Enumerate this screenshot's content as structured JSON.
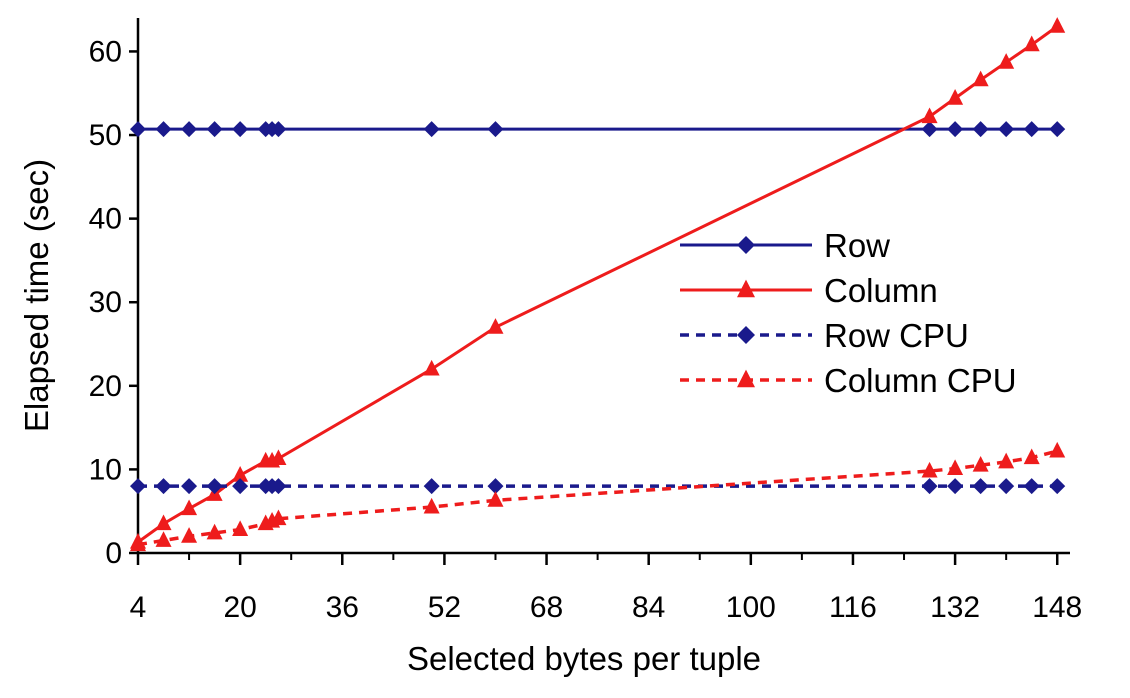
{
  "chart_data": {
    "type": "line",
    "title": "",
    "xlabel": "Selected bytes per tuple",
    "ylabel": "Elapsed time (sec)",
    "xlim": [
      4,
      150
    ],
    "ylim": [
      0,
      64
    ],
    "xticks": [
      4,
      20,
      36,
      52,
      68,
      84,
      100,
      116,
      132,
      148
    ],
    "yticks": [
      0,
      10,
      20,
      30,
      40,
      50,
      60
    ],
    "grid": false,
    "legend_position": "right-center",
    "series": [
      {
        "name": "Row",
        "color": "#1a1a8c",
        "line": "solid",
        "marker": "diamond",
        "points": [
          [
            4,
            50.7
          ],
          [
            8,
            50.7
          ],
          [
            12,
            50.7
          ],
          [
            16,
            50.7
          ],
          [
            20,
            50.7
          ],
          [
            24,
            50.7
          ],
          [
            25,
            50.7
          ],
          [
            26,
            50.7
          ],
          [
            50,
            50.7
          ],
          [
            60,
            50.7
          ],
          [
            128,
            50.7
          ],
          [
            132,
            50.7
          ],
          [
            136,
            50.7
          ],
          [
            140,
            50.7
          ],
          [
            144,
            50.7
          ],
          [
            148,
            50.7
          ]
        ]
      },
      {
        "name": "Column",
        "color": "#ee1c1c",
        "line": "solid",
        "marker": "triangle",
        "points": [
          [
            4,
            1.3
          ],
          [
            8,
            3.5
          ],
          [
            12,
            5.3
          ],
          [
            16,
            7.0
          ],
          [
            20,
            9.3
          ],
          [
            24,
            11.0
          ],
          [
            25,
            11.0
          ],
          [
            26,
            11.3
          ],
          [
            50,
            22.0
          ],
          [
            60,
            27.0
          ],
          [
            128,
            52.2
          ],
          [
            132,
            54.4
          ],
          [
            136,
            56.6
          ],
          [
            140,
            58.7
          ],
          [
            144,
            60.8
          ],
          [
            148,
            63.0
          ]
        ]
      },
      {
        "name": "Row CPU",
        "color": "#1a1a8c",
        "line": "dashed",
        "marker": "diamond",
        "points": [
          [
            4,
            8.0
          ],
          [
            8,
            8.0
          ],
          [
            12,
            8.0
          ],
          [
            16,
            8.0
          ],
          [
            20,
            8.0
          ],
          [
            24,
            8.0
          ],
          [
            25,
            8.0
          ],
          [
            26,
            8.0
          ],
          [
            50,
            8.0
          ],
          [
            60,
            8.0
          ],
          [
            128,
            8.0
          ],
          [
            132,
            8.0
          ],
          [
            136,
            8.0
          ],
          [
            140,
            8.0
          ],
          [
            144,
            8.0
          ],
          [
            148,
            8.0
          ]
        ]
      },
      {
        "name": "Column CPU",
        "color": "#ee1c1c",
        "line": "dashed",
        "marker": "triangle",
        "points": [
          [
            4,
            1.0
          ],
          [
            8,
            1.5
          ],
          [
            12,
            2.0
          ],
          [
            16,
            2.4
          ],
          [
            20,
            2.8
          ],
          [
            24,
            3.5
          ],
          [
            25,
            3.8
          ],
          [
            26,
            4.1
          ],
          [
            50,
            5.5
          ],
          [
            60,
            6.3
          ],
          [
            128,
            9.8
          ],
          [
            132,
            10.1
          ],
          [
            136,
            10.5
          ],
          [
            140,
            10.9
          ],
          [
            144,
            11.4
          ],
          [
            148,
            12.2
          ]
        ]
      }
    ]
  }
}
